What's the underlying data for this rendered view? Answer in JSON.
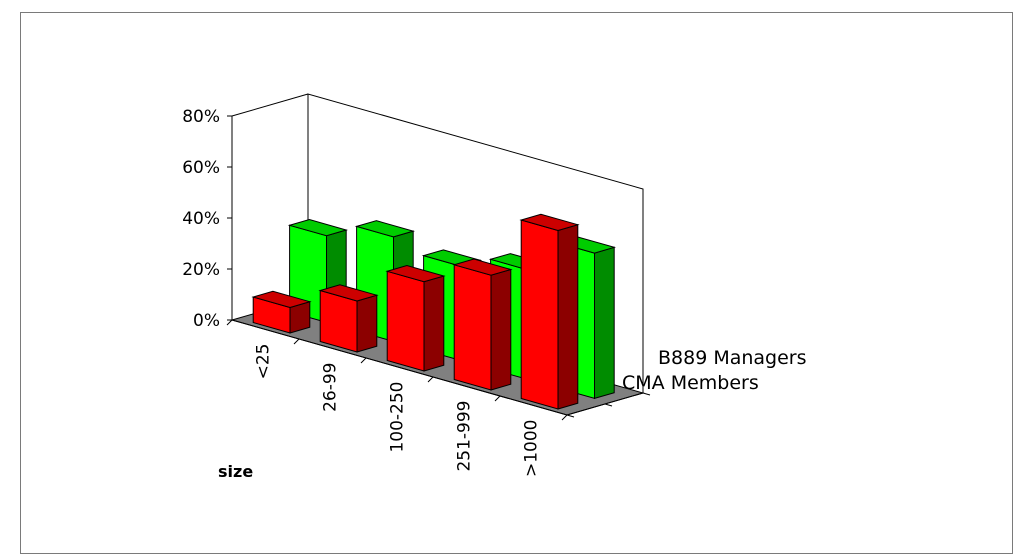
{
  "chart_data": {
    "type": "bar",
    "subtype": "3d-clustered",
    "xlabel": "size",
    "categories": [
      "<25",
      "26-99",
      "100-250",
      "251-999",
      ">1000"
    ],
    "yticks": [
      "0%",
      "20%",
      "40%",
      "60%",
      "80%"
    ],
    "ylim": [
      0,
      80
    ],
    "series": [
      {
        "name": "CMA Members",
        "values": [
          10,
          20,
          35,
          45,
          70
        ],
        "color": "#ff0000"
      },
      {
        "name": "B889 Managers",
        "values": [
          34,
          41,
          37,
          43,
          57
        ],
        "color": "#00ff00"
      }
    ],
    "legend_labels": [
      "B889 Managers",
      "CMA Members"
    ],
    "legend_position": "right"
  }
}
